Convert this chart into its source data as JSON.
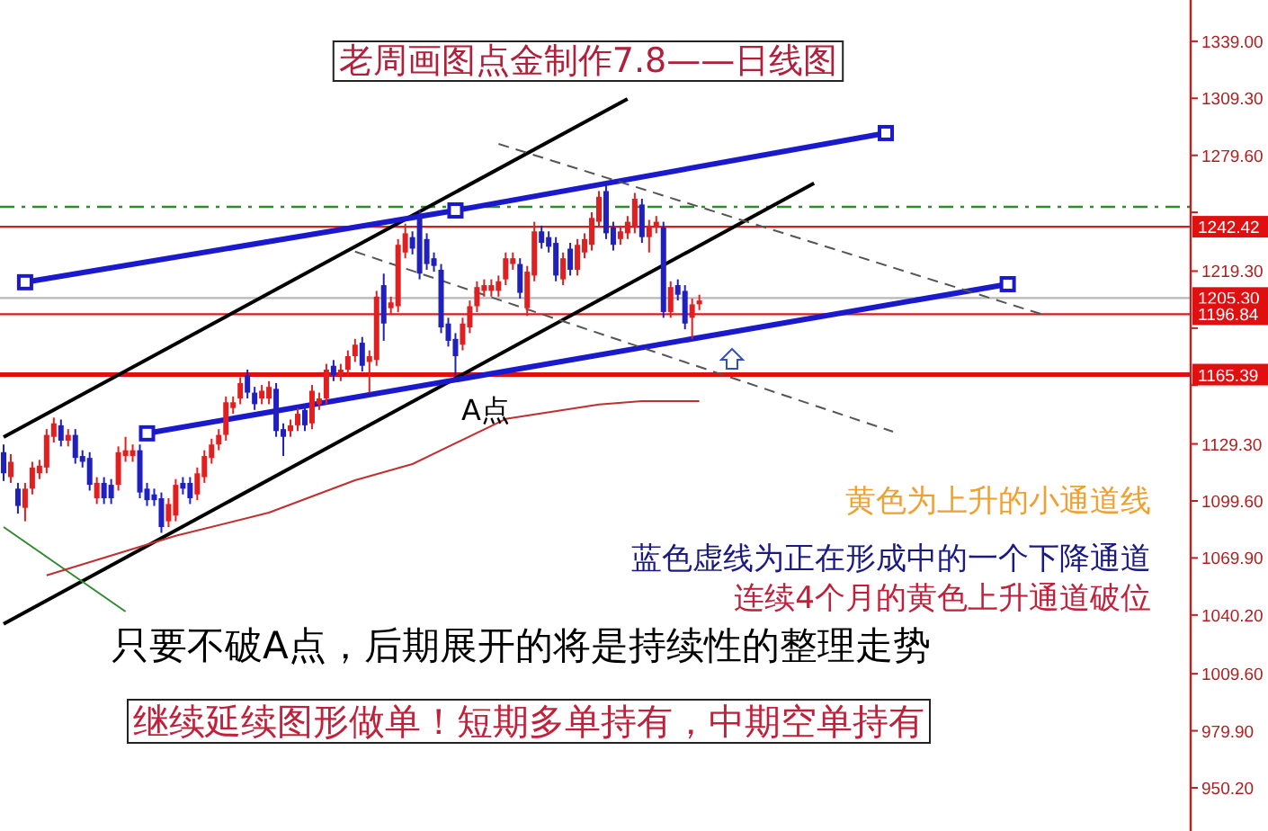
{
  "chart_data": {
    "type": "candlestick",
    "tick_labels": "y",
    "ylim": [
      927.7,
      1360.5
    ],
    "yticks": [
      {
        "value": 1339,
        "label": "1339.00"
      },
      {
        "value": 1309.3,
        "label": "1309.30"
      },
      {
        "value": 1279.6,
        "label": "1279.60"
      },
      {
        "value": 1249.9,
        "label": null
      },
      {
        "value": 1219.3,
        "label": "1219.30"
      },
      {
        "value": 1189.6,
        "label": null
      },
      {
        "value": 1159.9,
        "label": null
      },
      {
        "value": 1129.3,
        "label": "1129.30"
      },
      {
        "value": 1099.6,
        "label": "1099.60"
      },
      {
        "value": 1069.9,
        "label": "1069.90"
      },
      {
        "value": 1040.2,
        "label": "1040.20"
      },
      {
        "value": 1009.6,
        "label": "1009.60"
      },
      {
        "value": 979.9,
        "label": "979.90"
      },
      {
        "value": 950.2,
        "label": "950.20"
      }
    ],
    "categories": [
      null,
      null,
      null,
      null,
      null,
      null,
      null,
      null,
      null,
      null,
      null,
      null,
      null,
      null,
      null,
      null,
      null,
      null,
      null,
      null,
      null,
      null,
      null,
      null,
      null,
      null,
      null,
      null,
      null,
      null,
      null,
      null,
      null,
      null,
      null,
      null,
      null,
      null,
      null,
      null,
      null,
      null,
      null,
      null,
      null,
      null,
      null,
      null,
      null,
      null,
      null,
      null,
      null,
      null,
      null,
      null,
      null,
      null,
      null,
      null,
      null,
      null,
      null,
      null,
      null,
      null,
      null,
      null,
      null,
      null,
      null,
      null,
      null,
      null,
      null,
      null,
      null,
      null,
      null,
      null,
      null,
      null,
      null,
      null,
      null,
      null,
      null,
      null,
      null,
      null,
      null,
      null,
      null,
      null,
      null,
      null,
      null,
      null,
      null,
      null,
      null,
      null,
      null,
      null,
      null,
      null,
      null,
      null,
      null,
      null,
      null,
      null,
      null,
      null,
      null,
      null,
      null,
      null,
      null,
      null,
      null,
      null,
      null,
      null,
      null,
      null,
      null,
      null,
      null,
      null,
      null,
      null,
      null,
      null,
      null,
      null,
      null,
      null,
      null,
      null,
      null,
      null,
      null,
      null,
      null,
      null,
      null,
      null,
      null,
      null,
      null,
      null,
      null,
      null,
      null,
      null,
      null,
      null,
      null,
      null,
      null,
      null,
      null,
      null,
      null,
      null
    ],
    "ohlc": [
      [
        1125,
        1129,
        1110,
        1114
      ],
      [
        1112,
        1124,
        1109,
        1120
      ],
      [
        1106,
        1109,
        1093,
        1097
      ],
      [
        1096,
        1109,
        1089,
        1106
      ],
      [
        1106,
        1120,
        1103,
        1117
      ],
      [
        1114,
        1121,
        1111,
        1118
      ],
      [
        1117,
        1137,
        1114,
        1134
      ],
      [
        1133,
        1143,
        1130,
        1140
      ],
      [
        1139,
        1142,
        1128,
        1131
      ],
      [
        1131,
        1137,
        1128,
        1134
      ],
      [
        1134,
        1137,
        1119,
        1122
      ],
      [
        1123,
        1126,
        1117,
        1120
      ],
      [
        1122,
        1125,
        1105,
        1108
      ],
      [
        1101,
        1112,
        1098,
        1109
      ],
      [
        1109,
        1112,
        1098,
        1101
      ],
      [
        1108,
        1111,
        1098,
        1101
      ],
      [
        1108,
        1128,
        1105,
        1125
      ],
      [
        1123,
        1133,
        1120,
        1126
      ],
      [
        1123,
        1129,
        1120,
        1126
      ],
      [
        1126,
        1129,
        1101,
        1104
      ],
      [
        1106,
        1109,
        1097,
        1100
      ],
      [
        1103,
        1106,
        1097,
        1100
      ],
      [
        1101,
        1104,
        1083,
        1086
      ],
      [
        1089,
        1101,
        1086,
        1098
      ],
      [
        1092,
        1111,
        1089,
        1108
      ],
      [
        1109,
        1112,
        1103,
        1106
      ],
      [
        1109,
        1112,
        1098,
        1101
      ],
      [
        1103,
        1117,
        1100,
        1114
      ],
      [
        1112,
        1126,
        1109,
        1123
      ],
      [
        1122,
        1132,
        1119,
        1129
      ],
      [
        1129,
        1137,
        1126,
        1134
      ],
      [
        1134,
        1154,
        1131,
        1151
      ],
      [
        1148,
        1154,
        1145,
        1151
      ],
      [
        1153,
        1164,
        1150,
        1161
      ],
      [
        1165,
        1168,
        1153,
        1156
      ],
      [
        1156,
        1159,
        1147,
        1150
      ],
      [
        1153,
        1160,
        1150,
        1157
      ],
      [
        1153,
        1162,
        1150,
        1159
      ],
      [
        1158,
        1161,
        1133,
        1136
      ],
      [
        1137,
        1140,
        1123,
        1133
      ],
      [
        1136,
        1142,
        1133,
        1139
      ],
      [
        1139,
        1148,
        1136,
        1145
      ],
      [
        1147,
        1150,
        1136,
        1139
      ],
      [
        1140,
        1160,
        1137,
        1157
      ],
      [
        1150,
        1156,
        1147,
        1153
      ],
      [
        1153,
        1171,
        1150,
        1168
      ],
      [
        1170,
        1173,
        1162,
        1165
      ],
      [
        1165,
        1171,
        1162,
        1168
      ],
      [
        1168,
        1178,
        1165,
        1175
      ],
      [
        1175,
        1184,
        1172,
        1181
      ],
      [
        1182,
        1185,
        1167,
        1170
      ],
      [
        1172,
        1178,
        1156,
        1175
      ],
      [
        1173,
        1209,
        1170,
        1206
      ],
      [
        1212,
        1218,
        1183,
        1192
      ],
      [
        1200,
        1206,
        1197,
        1203
      ],
      [
        1201,
        1236,
        1198,
        1233
      ],
      [
        1229,
        1244,
        1226,
        1239
      ],
      [
        1237,
        1240,
        1228,
        1231
      ],
      [
        1248,
        1251,
        1215,
        1218
      ],
      [
        1236,
        1239,
        1220,
        1223
      ],
      [
        1226,
        1229,
        1219,
        1222
      ],
      [
        1220,
        1223,
        1187,
        1190
      ],
      [
        1192,
        1195,
        1180,
        1183
      ],
      [
        1184,
        1187,
        1165,
        1175
      ],
      [
        1181,
        1195,
        1178,
        1192
      ],
      [
        1190,
        1204,
        1187,
        1201
      ],
      [
        1201,
        1214,
        1198,
        1211
      ],
      [
        1209,
        1215,
        1206,
        1212
      ],
      [
        1209,
        1215,
        1206,
        1212
      ],
      [
        1209,
        1217,
        1206,
        1214
      ],
      [
        1215,
        1229,
        1212,
        1226
      ],
      [
        1223,
        1229,
        1220,
        1226
      ],
      [
        1223,
        1226,
        1205,
        1208
      ],
      [
        1200,
        1222,
        1196,
        1219
      ],
      [
        1217,
        1245,
        1214,
        1240
      ],
      [
        1240,
        1243,
        1231,
        1234
      ],
      [
        1237,
        1240,
        1229,
        1232
      ],
      [
        1234,
        1237,
        1214,
        1217
      ],
      [
        1215,
        1229,
        1212,
        1226
      ],
      [
        1231,
        1234,
        1217,
        1220
      ],
      [
        1220,
        1236,
        1217,
        1233
      ],
      [
        1229,
        1239,
        1226,
        1236
      ],
      [
        1233,
        1250,
        1230,
        1247
      ],
      [
        1245,
        1261,
        1242,
        1258
      ],
      [
        1261,
        1264,
        1236,
        1239
      ],
      [
        1242,
        1245,
        1230,
        1233
      ],
      [
        1236,
        1243,
        1233,
        1240
      ],
      [
        1239,
        1248,
        1236,
        1245
      ],
      [
        1242,
        1260,
        1239,
        1257
      ],
      [
        1254,
        1257,
        1234,
        1237
      ],
      [
        1237,
        1246,
        1229,
        1243
      ],
      [
        1242,
        1248,
        1239,
        1245
      ],
      [
        1242,
        1245,
        1195,
        1198
      ],
      [
        1198,
        1214,
        1195,
        1211
      ],
      [
        1212,
        1215,
        1204,
        1207
      ],
      [
        1209,
        1212,
        1189,
        1192
      ],
      [
        1195,
        1205,
        1184,
        1202
      ],
      [
        1202,
        1207,
        1199,
        1204
      ],
      null,
      null,
      null,
      null,
      null,
      null,
      null,
      null,
      null,
      null,
      null,
      null,
      null,
      null,
      null,
      null,
      null,
      null,
      null,
      null,
      null,
      null,
      null,
      null,
      null,
      null,
      null,
      null,
      null,
      null,
      null,
      null,
      null,
      null,
      null,
      null,
      null,
      null,
      null,
      null,
      null,
      null,
      null,
      null,
      null,
      null,
      null,
      null,
      null,
      null,
      null,
      null,
      null,
      null,
      null,
      null,
      null,
      null,
      null,
      null,
      null,
      null,
      null,
      null,
      null,
      null,
      null,
      null
    ],
    "series": [
      {
        "type": "line",
        "color": "#000000",
        "line_style": "solid",
        "values": [
          1132.9,
          null,
          null,
          null,
          null,
          null,
          null,
          null,
          null,
          null,
          null,
          null,
          null,
          null,
          null,
          null,
          null,
          null,
          null,
          null,
          null,
          null,
          null,
          null,
          null,
          null,
          null,
          null,
          null,
          null,
          null,
          null,
          null,
          null,
          null,
          null,
          null,
          null,
          null,
          null,
          null,
          null,
          null,
          null,
          null,
          null,
          null,
          null,
          null,
          null,
          null,
          null,
          null,
          null,
          null,
          null,
          null,
          null,
          null,
          null,
          null,
          null,
          null,
          null,
          null,
          null,
          null,
          null,
          null,
          null,
          null,
          null,
          null,
          null,
          null,
          null,
          null,
          null,
          null,
          null,
          null,
          null,
          null,
          null,
          null,
          null,
          null,
          1309.0,
          null,
          null,
          null,
          null,
          null,
          null,
          null,
          null,
          null,
          null,
          null,
          null,
          null,
          null,
          null,
          null,
          null,
          null,
          null,
          null,
          null,
          null,
          null,
          null,
          null,
          null,
          null,
          null,
          null,
          null,
          null,
          null,
          null,
          null,
          null,
          null,
          null,
          null,
          null,
          null,
          null,
          null,
          null,
          null,
          null,
          null,
          null,
          null,
          null,
          null,
          null,
          null,
          null,
          null,
          null,
          null,
          null,
          null,
          null,
          null,
          null,
          null,
          null,
          null,
          null,
          null,
          null,
          null,
          null,
          null,
          null,
          null,
          null,
          null,
          null,
          null,
          null,
          null
        ]
      },
      {
        "type": "line",
        "color": "#000000",
        "line_style": "solid",
        "values": [
          1035.5,
          null,
          null,
          null,
          null,
          null,
          null,
          null,
          null,
          null,
          null,
          null,
          null,
          null,
          null,
          null,
          null,
          null,
          null,
          null,
          null,
          null,
          null,
          null,
          null,
          null,
          null,
          null,
          null,
          null,
          null,
          null,
          null,
          null,
          null,
          null,
          null,
          null,
          null,
          null,
          null,
          null,
          null,
          null,
          null,
          null,
          null,
          null,
          null,
          null,
          null,
          null,
          null,
          null,
          null,
          null,
          null,
          null,
          null,
          null,
          null,
          null,
          null,
          null,
          null,
          null,
          null,
          null,
          null,
          null,
          null,
          null,
          null,
          null,
          null,
          null,
          null,
          null,
          null,
          null,
          null,
          null,
          null,
          null,
          null,
          null,
          null,
          null,
          null,
          null,
          null,
          null,
          null,
          null,
          null,
          null,
          null,
          null,
          null,
          null,
          null,
          null,
          null,
          null,
          null,
          null,
          null,
          null,
          null,
          null,
          null,
          null,
          null,
          1265.0,
          null,
          null,
          null,
          null,
          null,
          null,
          null,
          null,
          null,
          null,
          null,
          null,
          null,
          null,
          null,
          null,
          null,
          null,
          null,
          null,
          null,
          null,
          null,
          null,
          null,
          null,
          null,
          null,
          null,
          null,
          null,
          null,
          null,
          null,
          null,
          null,
          null,
          null,
          null,
          null,
          null,
          null,
          null,
          null,
          null,
          null,
          null,
          null,
          null,
          null,
          null,
          null
        ]
      },
      {
        "type": "line",
        "color": "#2e8b2e",
        "line_style": "solid",
        "values": [
          1086.0,
          null,
          null,
          null,
          null,
          null,
          null,
          null,
          null,
          null,
          null,
          null,
          null,
          null,
          null,
          null,
          null,
          1042.0,
          null,
          null,
          null,
          null,
          null,
          null,
          null,
          null,
          null,
          null,
          null,
          null,
          null,
          null,
          null,
          null,
          null,
          null,
          null,
          null,
          null,
          null,
          null,
          null,
          null,
          null,
          null,
          null,
          null,
          null,
          null,
          null,
          null,
          null,
          null,
          null,
          null,
          null,
          null,
          null,
          null,
          null,
          null,
          null,
          null,
          null,
          null,
          null,
          null,
          null,
          null,
          null,
          null,
          null,
          null,
          null,
          null,
          null,
          null,
          null,
          null,
          null,
          null,
          null,
          null,
          null,
          null,
          null,
          null,
          null,
          null,
          null,
          null,
          null,
          null,
          null,
          null,
          null,
          null,
          null,
          null,
          null,
          null,
          null,
          null,
          null,
          null,
          null,
          null,
          null,
          null,
          null,
          null,
          null,
          null,
          null,
          null,
          null,
          null,
          null,
          null,
          null,
          null,
          null,
          null,
          null,
          null,
          null,
          null,
          null,
          null,
          null,
          null,
          null,
          null,
          null,
          null,
          null,
          null,
          null,
          null,
          null,
          null,
          null,
          null,
          null,
          null,
          null,
          null,
          null,
          null,
          null,
          null,
          null,
          null,
          null,
          null,
          null,
          null,
          null,
          null,
          null,
          null,
          null,
          null,
          null,
          null,
          null
        ]
      },
      {
        "type": "line",
        "color": "#1a1acc",
        "line_style": "solid",
        "marker": "square",
        "values": [
          null,
          null,
          null,
          1213.5,
          null,
          null,
          null,
          null,
          null,
          null,
          null,
          null,
          null,
          null,
          null,
          null,
          null,
          null,
          null,
          null,
          null,
          null,
          null,
          null,
          null,
          null,
          null,
          null,
          null,
          null,
          null,
          null,
          null,
          null,
          null,
          null,
          null,
          null,
          null,
          null,
          null,
          null,
          null,
          null,
          null,
          null,
          null,
          null,
          null,
          null,
          null,
          null,
          null,
          null,
          null,
          null,
          null,
          null,
          null,
          null,
          null,
          null,
          null,
          1250.9,
          null,
          null,
          null,
          null,
          null,
          null,
          null,
          null,
          null,
          null,
          null,
          null,
          null,
          null,
          null,
          null,
          null,
          null,
          null,
          null,
          null,
          null,
          null,
          null,
          null,
          null,
          null,
          null,
          null,
          null,
          null,
          null,
          null,
          null,
          null,
          null,
          null,
          null,
          null,
          null,
          null,
          null,
          null,
          null,
          null,
          null,
          null,
          null,
          null,
          null,
          null,
          null,
          null,
          null,
          null,
          null,
          null,
          null,
          null,
          1291.2,
          null,
          null,
          null,
          null,
          null,
          null,
          null,
          null,
          null,
          null,
          null,
          null,
          null,
          null,
          null,
          null,
          null,
          null,
          null,
          null,
          null,
          null,
          null,
          null,
          null,
          null,
          null,
          null,
          null,
          null,
          null,
          null,
          null,
          null,
          null,
          null,
          null,
          null,
          null,
          null,
          null,
          null
        ]
      },
      {
        "type": "line",
        "color": "#1a1acc",
        "line_style": "solid",
        "marker": "square",
        "values": [
          null,
          null,
          null,
          null,
          null,
          null,
          null,
          null,
          null,
          null,
          null,
          null,
          null,
          null,
          null,
          null,
          null,
          null,
          null,
          null,
          1134.8,
          null,
          null,
          null,
          null,
          null,
          null,
          null,
          null,
          null,
          null,
          null,
          null,
          null,
          null,
          null,
          null,
          null,
          null,
          null,
          null,
          null,
          null,
          null,
          null,
          null,
          null,
          null,
          null,
          null,
          null,
          null,
          null,
          null,
          null,
          null,
          null,
          null,
          null,
          null,
          null,
          null,
          null,
          null,
          null,
          null,
          null,
          null,
          null,
          null,
          null,
          null,
          null,
          null,
          null,
          null,
          null,
          null,
          null,
          null,
          null,
          null,
          null,
          null,
          null,
          null,
          null,
          null,
          null,
          null,
          null,
          null,
          null,
          null,
          null,
          null,
          null,
          null,
          null,
          null,
          null,
          null,
          null,
          null,
          null,
          null,
          null,
          null,
          null,
          null,
          null,
          null,
          null,
          null,
          null,
          null,
          null,
          null,
          null,
          null,
          null,
          null,
          null,
          null,
          null,
          null,
          null,
          null,
          null,
          null,
          null,
          null,
          null,
          null,
          null,
          null,
          null,
          null,
          null,
          null,
          1212.5,
          null,
          null,
          null,
          null,
          null,
          null,
          null,
          null,
          null,
          null,
          null,
          null,
          null,
          null,
          null,
          null,
          null,
          null,
          null,
          null,
          null,
          null,
          null,
          null,
          null
        ]
      },
      {
        "type": "line",
        "color": "#555555",
        "line_style": "dashed",
        "values": [
          null,
          null,
          null,
          null,
          null,
          null,
          null,
          null,
          null,
          null,
          null,
          null,
          null,
          null,
          null,
          null,
          null,
          null,
          null,
          null,
          null,
          null,
          null,
          null,
          null,
          null,
          null,
          null,
          null,
          null,
          null,
          null,
          null,
          null,
          null,
          null,
          null,
          null,
          null,
          null,
          null,
          null,
          null,
          null,
          null,
          null,
          null,
          null,
          null,
          null,
          null,
          null,
          null,
          null,
          null,
          null,
          null,
          null,
          null,
          null,
          null,
          null,
          null,
          null,
          null,
          null,
          null,
          null,
          null,
          1285.6,
          null,
          null,
          null,
          null,
          null,
          null,
          null,
          null,
          null,
          null,
          null,
          null,
          null,
          null,
          null,
          null,
          null,
          null,
          null,
          null,
          null,
          null,
          null,
          null,
          null,
          null,
          null,
          null,
          null,
          null,
          null,
          null,
          null,
          null,
          null,
          null,
          null,
          null,
          null,
          null,
          null,
          null,
          null,
          null,
          null,
          null,
          null,
          null,
          null,
          null,
          null,
          null,
          null,
          null,
          null,
          null,
          null,
          null,
          null,
          null,
          null,
          null,
          null,
          null,
          null,
          null,
          null,
          null,
          null,
          null,
          null,
          null,
          null,
          null,
          null,
          1196.6,
          null,
          null,
          null,
          null,
          null,
          null,
          null,
          null,
          null,
          null,
          null,
          null,
          null,
          null,
          null,
          null,
          null,
          null,
          null,
          null
        ]
      },
      {
        "type": "line",
        "color": "#555555",
        "line_style": "dashed",
        "values": [
          null,
          null,
          null,
          null,
          null,
          null,
          null,
          null,
          null,
          null,
          null,
          null,
          null,
          null,
          null,
          null,
          null,
          null,
          null,
          null,
          null,
          null,
          null,
          null,
          null,
          null,
          null,
          null,
          null,
          null,
          null,
          null,
          null,
          null,
          null,
          null,
          null,
          null,
          null,
          null,
          null,
          null,
          null,
          null,
          null,
          null,
          null,
          null,
          null,
          1229.4,
          null,
          null,
          null,
          null,
          null,
          null,
          null,
          null,
          null,
          null,
          null,
          null,
          null,
          null,
          null,
          null,
          null,
          null,
          null,
          null,
          null,
          null,
          null,
          null,
          null,
          null,
          null,
          null,
          null,
          null,
          null,
          null,
          null,
          null,
          null,
          null,
          null,
          null,
          null,
          null,
          null,
          null,
          null,
          null,
          null,
          null,
          null,
          null,
          null,
          null,
          null,
          null,
          null,
          null,
          null,
          null,
          null,
          null,
          null,
          null,
          null,
          null,
          null,
          null,
          null,
          null,
          null,
          null,
          null,
          null,
          null,
          null,
          null,
          null,
          1135.7,
          null,
          null,
          null,
          null,
          null,
          null,
          null,
          null,
          null,
          null,
          null,
          null,
          null,
          null,
          null,
          null,
          null,
          null,
          null,
          null,
          null,
          null,
          null,
          null,
          null,
          null,
          null,
          null,
          null,
          null,
          null,
          null,
          null,
          null,
          null,
          null,
          null,
          null,
          null,
          null,
          null
        ]
      },
      {
        "type": "line",
        "color": "#c03030",
        "line_style": "solid",
        "values": [
          null,
          null,
          null,
          null,
          null,
          null,
          1060.8,
          null,
          null,
          null,
          null,
          null,
          null,
          null,
          null,
          null,
          null,
          null,
          null,
          null,
          null,
          null,
          null,
          null,
          1081.4,
          null,
          null,
          null,
          null,
          null,
          null,
          null,
          null,
          null,
          null,
          null,
          null,
          1093.5,
          null,
          null,
          null,
          null,
          null,
          null,
          null,
          null,
          null,
          null,
          null,
          1110.4,
          null,
          null,
          null,
          null,
          null,
          null,
          null,
          1118.8,
          null,
          null,
          null,
          null,
          null,
          null,
          null,
          null,
          null,
          null,
          null,
          null,
          1142.3,
          null,
          null,
          null,
          null,
          null,
          null,
          null,
          null,
          null,
          null,
          null,
          null,
          1149.8,
          null,
          null,
          null,
          null,
          null,
          1151.6,
          null,
          null,
          null,
          null,
          null,
          null,
          null,
          1151.6,
          null,
          null,
          null,
          null,
          null,
          null,
          null,
          null,
          null,
          null,
          null,
          null,
          null,
          null,
          null,
          null,
          null,
          null,
          null,
          null,
          null,
          null,
          null,
          null,
          null,
          null,
          null,
          null,
          null,
          null,
          null,
          null,
          null,
          null,
          null,
          null,
          null,
          null,
          null,
          null,
          null,
          null,
          null,
          null,
          null,
          null,
          null,
          null,
          null,
          null,
          null,
          null,
          null,
          null,
          null,
          null,
          null,
          null,
          null,
          null,
          null,
          null,
          null,
          null,
          null,
          null,
          null,
          null
        ]
      }
    ],
    "ref_lines": [
      {
        "axis": "y",
        "value": 1252.8,
        "label": null,
        "color": "#2e8b2e",
        "line_style": "dashed"
      },
      {
        "axis": "y",
        "value": 1242.42,
        "label": "1242.42",
        "color": "#d02020",
        "line_style": "solid"
      },
      {
        "axis": "y",
        "value": 1205.3,
        "label": "1205.30",
        "color": "#b8b8b8",
        "line_style": "solid"
      },
      {
        "axis": "y",
        "value": 1196.84,
        "label": "1196.84",
        "color": "#d02020",
        "line_style": "solid"
      },
      {
        "axis": "y",
        "value": 1165.39,
        "label": "1165.39",
        "color": "#e01010",
        "line_style": "solid"
      }
    ],
    "annotations": [
      "老周画图点金制作7.8——日线图",
      {
        "text": "A点",
        "y": 1165
      },
      "黄色为上升的小通道线",
      "蓝色虚线为正在形成中的一个下降通道",
      "连续4个月的黄色上升通道破位",
      "只要不破A点，后期展开的将是持续性的整理走势",
      "继续延续图形做单！短期多单持有，中期空单持有"
    ]
  }
}
